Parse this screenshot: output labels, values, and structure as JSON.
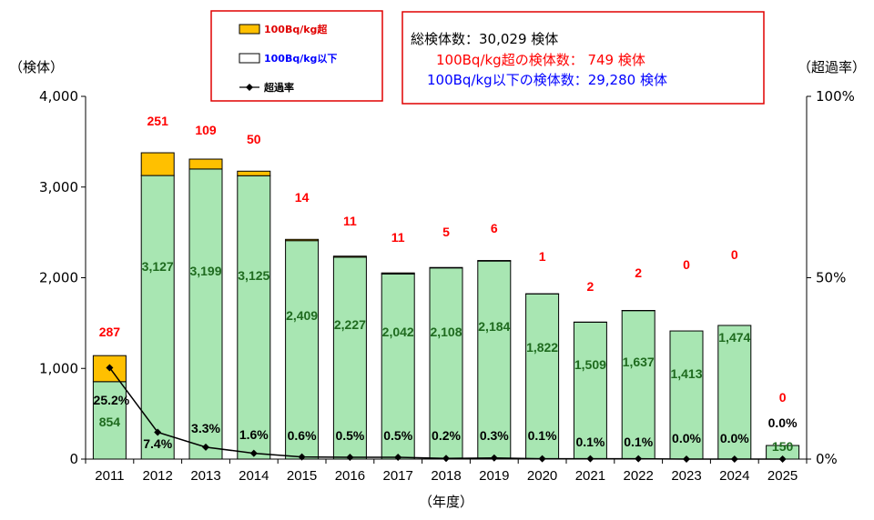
{
  "chart_data": {
    "type": "bar",
    "categories": [
      "2011",
      "2012",
      "2013",
      "2014",
      "2015",
      "2016",
      "2017",
      "2018",
      "2019",
      "2020",
      "2021",
      "2022",
      "2023",
      "2024",
      "2025"
    ],
    "series": [
      {
        "name": "100Bq/kg以下",
        "values": [
          854,
          3127,
          3199,
          3125,
          2409,
          2227,
          2042,
          2108,
          2184,
          1822,
          1509,
          1637,
          1413,
          1474,
          150
        ],
        "labels": [
          "854",
          "3,127",
          "3,199",
          "3,125",
          "2,409",
          "2,227",
          "2,042",
          "2,108",
          "2,184",
          "1,822",
          "1,509",
          "1,637",
          "1,413",
          "1,474",
          "150"
        ],
        "color": "#a8e6b2"
      },
      {
        "name": "100Bq/kg超",
        "values": [
          287,
          251,
          109,
          50,
          14,
          11,
          11,
          5,
          6,
          1,
          2,
          2,
          0,
          0,
          0
        ],
        "labels": [
          "287",
          "251",
          "109",
          "50",
          "14",
          "11",
          "11",
          "5",
          "6",
          "1",
          "2",
          "2",
          "0",
          "0",
          "0"
        ],
        "color": "#ffc000"
      },
      {
        "name": "超過率",
        "values": [
          25.2,
          7.4,
          3.3,
          1.6,
          0.6,
          0.5,
          0.5,
          0.2,
          0.3,
          0.1,
          0.1,
          0.1,
          0.0,
          0.0,
          0.0
        ],
        "labels": [
          "25.2%",
          "7.4%",
          "3.3%",
          "1.6%",
          "0.6%",
          "0.5%",
          "0.5%",
          "0.2%",
          "0.3%",
          "0.1%",
          "0.1%",
          "0.1%",
          "0.0%",
          "0.0%",
          "0.0%"
        ],
        "color": "#000000"
      }
    ],
    "y_left": {
      "label": "（検体）",
      "min": 0,
      "max": 4000,
      "ticks": [
        "0",
        "1,000",
        "2,000",
        "3,000",
        "4,000"
      ]
    },
    "y_right": {
      "label": "（超過率）",
      "min": 0,
      "max": 100,
      "ticks": [
        "0%",
        "50%",
        "100%"
      ]
    },
    "xlabel": "（年度）",
    "legend_position": "top-center",
    "info_box": {
      "line1": "総検体数：30,029 検体",
      "line2": "100Bq/kg超の検体数： 749 検体",
      "line3": "100Bq/kg以下の検体数：29,280 検体"
    }
  }
}
